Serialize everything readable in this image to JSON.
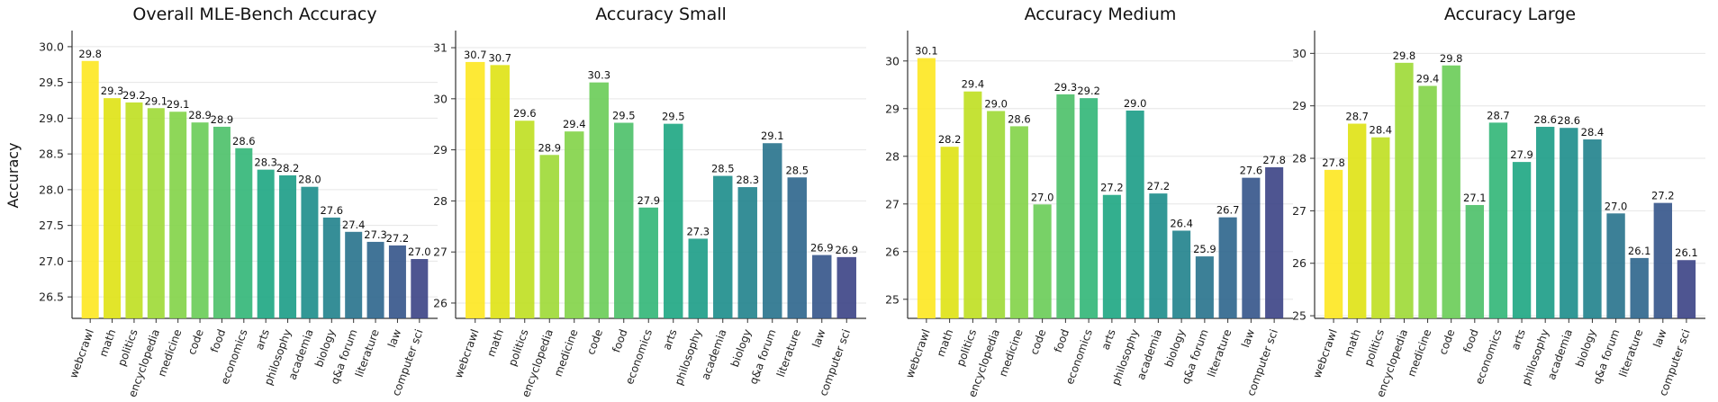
{
  "chart_data": [
    {
      "type": "bar",
      "title": "Overall MLE-Bench Accuracy",
      "ylabel": "Accuracy",
      "xlabel": "",
      "ylim": [
        26.2,
        30.2
      ],
      "yticks": [
        "26.5",
        "27.0",
        "27.5",
        "28.0",
        "28.5",
        "29.0",
        "29.5",
        "30.0"
      ],
      "grid": "horizontal",
      "categories": [
        "webcrawl",
        "math",
        "politics",
        "encyclopedia",
        "medicine",
        "code",
        "food",
        "economics",
        "arts",
        "philosophy",
        "academia",
        "biology",
        "q&a forum",
        "literature",
        "law",
        "computer sci"
      ],
      "values": [
        29.8,
        29.28,
        29.22,
        29.14,
        29.09,
        28.94,
        28.88,
        28.58,
        28.28,
        28.2,
        28.04,
        27.61,
        27.41,
        27.27,
        27.22,
        27.03
      ],
      "labels": [
        "29.8",
        "29.3",
        "29.2",
        "29.1",
        "29.1",
        "28.9",
        "28.9",
        "28.6",
        "28.3",
        "28.2",
        "28.0",
        "27.6",
        "27.4",
        "27.3",
        "27.2",
        "27.0"
      ]
    },
    {
      "type": "bar",
      "title": "Accuracy Small",
      "ylabel": "",
      "xlabel": "",
      "ylim": [
        25.7,
        31.3
      ],
      "yticks": [
        "26",
        "27",
        "28",
        "29",
        "30",
        "31"
      ],
      "grid": "horizontal",
      "categories": [
        "webcrawl",
        "math",
        "politics",
        "encyclopedia",
        "medicine",
        "code",
        "food",
        "economics",
        "arts",
        "philosophy",
        "academia",
        "biology",
        "q&a forum",
        "literature",
        "law",
        "computer sci"
      ],
      "values": [
        30.72,
        30.66,
        29.57,
        28.9,
        29.36,
        30.32,
        29.53,
        27.87,
        29.51,
        27.26,
        28.49,
        28.27,
        29.13,
        28.46,
        26.94,
        26.9
      ],
      "labels": [
        "30.7",
        "30.7",
        "29.6",
        "28.9",
        "29.4",
        "30.3",
        "29.5",
        "27.9",
        "29.5",
        "27.3",
        "28.5",
        "28.3",
        "29.1",
        "28.5",
        "26.9",
        "26.9"
      ]
    },
    {
      "type": "bar",
      "title": "Accuracy Medium",
      "ylabel": "",
      "xlabel": "",
      "ylim": [
        24.6,
        30.6
      ],
      "yticks": [
        "25",
        "26",
        "27",
        "28",
        "29",
        "30"
      ],
      "grid": "horizontal",
      "categories": [
        "webcrawl",
        "math",
        "politics",
        "encyclopedia",
        "medicine",
        "code",
        "food",
        "economics",
        "arts",
        "philosophy",
        "academia",
        "biology",
        "q&a forum",
        "literature",
        "law",
        "computer sci"
      ],
      "values": [
        30.06,
        28.2,
        29.36,
        28.95,
        28.63,
        26.99,
        29.3,
        29.22,
        27.19,
        28.96,
        27.22,
        26.44,
        25.9,
        26.72,
        27.55,
        27.77
      ],
      "labels": [
        "30.1",
        "28.2",
        "29.4",
        "29.0",
        "28.6",
        "27.0",
        "29.3",
        "29.2",
        "27.2",
        "29.0",
        "27.2",
        "26.4",
        "25.9",
        "26.7",
        "27.6",
        "27.8"
      ]
    },
    {
      "type": "bar",
      "title": "Accuracy Large",
      "ylabel": "",
      "xlabel": "",
      "ylim": [
        24.95,
        30.4
      ],
      "yticks": [
        "25",
        "26",
        "27",
        "28",
        "29",
        "30"
      ],
      "grid": "horizontal",
      "categories": [
        "webcrawl",
        "math",
        "politics",
        "encyclopedia",
        "medicine",
        "code",
        "food",
        "economics",
        "arts",
        "philosophy",
        "academia",
        "biology",
        "q&a forum",
        "literature",
        "law",
        "computer sci"
      ],
      "values": [
        27.78,
        28.66,
        28.4,
        29.82,
        29.38,
        29.77,
        27.11,
        28.68,
        27.93,
        28.6,
        28.58,
        28.36,
        26.95,
        26.1,
        27.15,
        26.06
      ],
      "labels": [
        "27.8",
        "28.7",
        "28.4",
        "29.8",
        "29.4",
        "29.8",
        "27.1",
        "28.7",
        "27.9",
        "28.6",
        "28.6",
        "28.4",
        "27.0",
        "26.1",
        "27.2",
        "26.1"
      ]
    }
  ],
  "colors": [
    "#fde725",
    "#dfe318",
    "#c0df25",
    "#a0da39",
    "#84d44b",
    "#6ccd5a",
    "#4fc16b",
    "#35b779",
    "#22a884",
    "#1f9e89",
    "#218f8d",
    "#25848e",
    "#2b758e",
    "#31688e",
    "#38588c",
    "#3f4788"
  ]
}
